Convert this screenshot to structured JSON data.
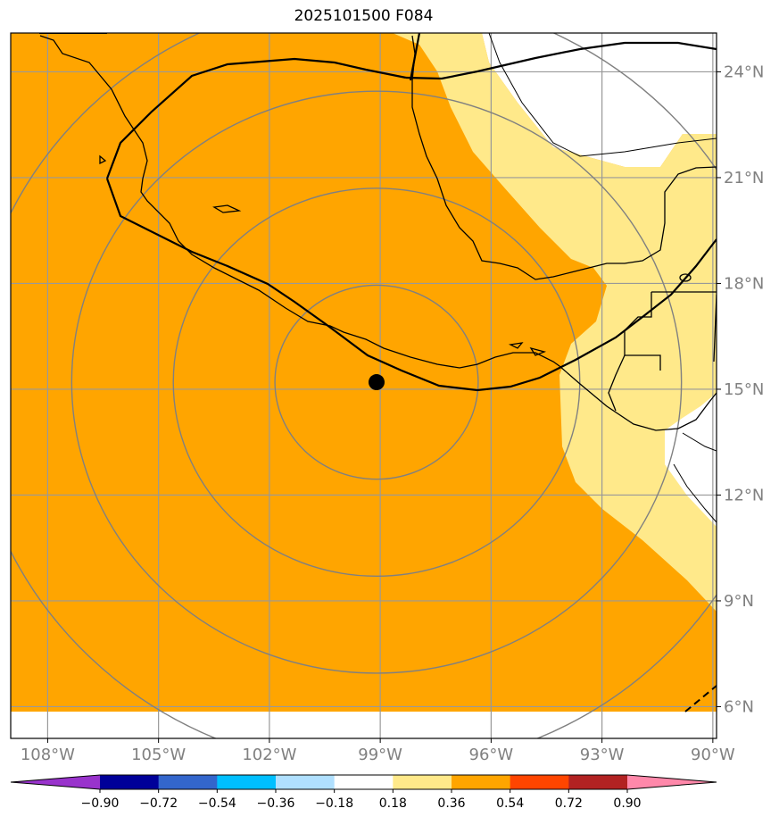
{
  "title": "2025101500 F084",
  "map": {
    "lon_range": [
      -109,
      -89.9
    ],
    "lat_range": [
      5.1,
      25.1
    ],
    "storm_center": {
      "lon": -99.1,
      "lat": 15.2
    },
    "range_rings_deg": [
      2.75,
      5.5,
      8.25,
      11.0
    ],
    "colors": {
      "main_fill": "#ffa500",
      "light_fill": "#ffe98a",
      "grid": "#999999",
      "coast": "#000000",
      "ring": "#808080",
      "storm_marker": "#000000"
    },
    "lat_ticks": [
      {
        "lat": 24,
        "label": "24°N"
      },
      {
        "lat": 21,
        "label": "21°N"
      },
      {
        "lat": 18,
        "label": "18°N"
      },
      {
        "lat": 15,
        "label": "15°N"
      },
      {
        "lat": 12,
        "label": "12°N"
      },
      {
        "lat": 9,
        "label": "9°N"
      },
      {
        "lat": 6,
        "label": "6°N"
      }
    ],
    "lon_ticks": [
      {
        "lon": -108,
        "label": "108°W"
      },
      {
        "lon": -105,
        "label": "105°W"
      },
      {
        "lon": -102,
        "label": "102°W"
      },
      {
        "lon": -99,
        "label": "99°W"
      },
      {
        "lon": -96,
        "label": "96°W"
      },
      {
        "lon": -93,
        "label": "93°W"
      },
      {
        "lon": -90,
        "label": "90°W"
      }
    ]
  },
  "colorbar": {
    "colors": [
      "#9933cc",
      "#000099",
      "#3366cc",
      "#00bfff",
      "#b0e0ff",
      "#ffffff",
      "#ffe98a",
      "#ffa500",
      "#ff4500",
      "#b22222",
      "#ff88aa"
    ],
    "labels": [
      "−0.90",
      "−0.72",
      "−0.54",
      "−0.36",
      "−0.18",
      "0.18",
      "0.36",
      "0.54",
      "0.72",
      "0.90"
    ]
  }
}
